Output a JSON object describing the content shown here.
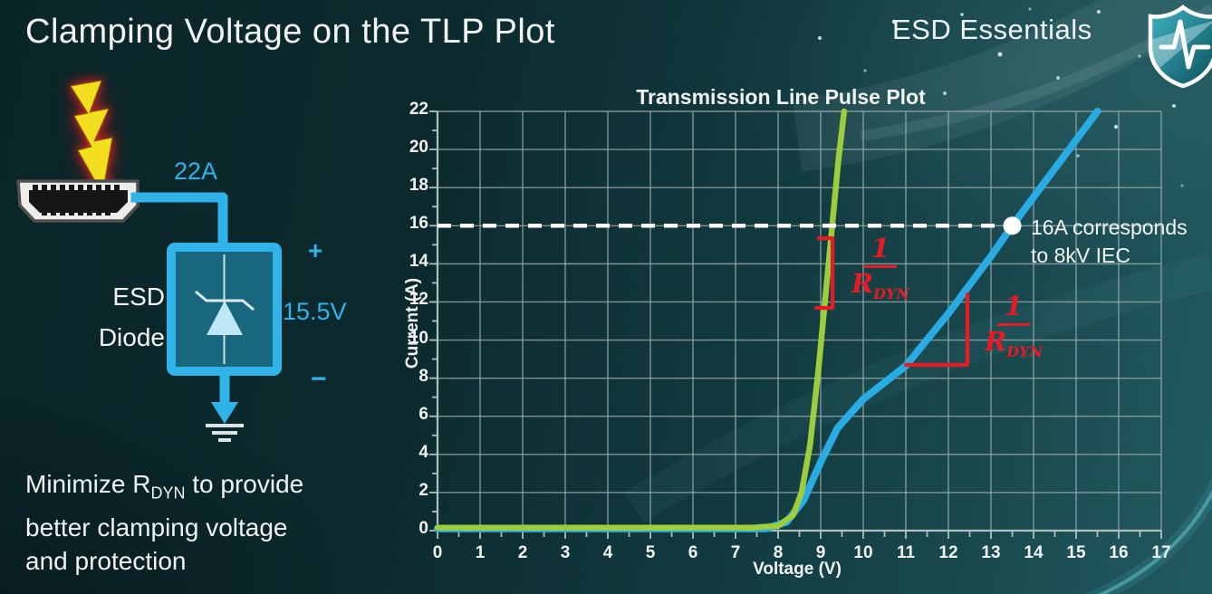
{
  "header": {
    "title": "Clamping Voltage on the TLP Plot",
    "brand": "ESD Essentials"
  },
  "icons": {
    "brand_icon": "shield-pulse-icon",
    "surge_icon": "lightning-bolt-icon",
    "connector_icon": "hdmi-connector-icon",
    "ground_icon": "earth-ground-icon"
  },
  "theme": {
    "colors": {
      "accent": "#2fb3e8",
      "green": "#9bcd3e",
      "blue": "#29ace3",
      "red": "#e61b24",
      "grid": "#9aacac",
      "text": "#f2f4f4"
    }
  },
  "circuit": {
    "surge_current": "22A",
    "component_line1": "ESD",
    "component_line2": "Diode",
    "clamp_voltage": "15.5V",
    "plus": "+",
    "minus": "−"
  },
  "note": {
    "prefix": "Minimize R",
    "subscript": "DYN",
    "suffix": " to provide",
    "line2": "better clamping voltage",
    "line3": "and protection"
  },
  "chart_data": {
    "type": "line",
    "title": "Transmission Line Pulse Plot",
    "xlabel": "Voltage (V)",
    "ylabel": "Current (A)",
    "xlim": [
      0,
      17
    ],
    "ylim": [
      0,
      22
    ],
    "grid": true,
    "x_ticks": [
      0,
      1,
      2,
      3,
      4,
      5,
      6,
      7,
      8,
      9,
      10,
      11,
      12,
      13,
      14,
      15,
      16,
      17
    ],
    "y_ticks": [
      0,
      2,
      4,
      6,
      8,
      10,
      12,
      14,
      16,
      18,
      20,
      22
    ],
    "series": [
      {
        "name": "green_curve_low_rdyn",
        "color": "#9bcd3e",
        "stroke_width": 6.5,
        "points": [
          [
            0,
            0.15
          ],
          [
            7.4,
            0.15
          ],
          [
            8.0,
            0.25
          ],
          [
            8.35,
            0.8
          ],
          [
            8.55,
            2
          ],
          [
            8.75,
            4.5
          ],
          [
            8.95,
            8.5
          ],
          [
            9.1,
            12
          ],
          [
            9.27,
            16
          ],
          [
            9.42,
            19.5
          ],
          [
            9.55,
            22
          ]
        ]
      },
      {
        "name": "blue_curve_higher_rdyn",
        "color": "#29ace3",
        "stroke_width": 8,
        "points": [
          [
            0,
            0.1
          ],
          [
            7.7,
            0.1
          ],
          [
            8.2,
            0.45
          ],
          [
            8.6,
            1.6
          ],
          [
            9.0,
            3.6
          ],
          [
            9.4,
            5.4
          ],
          [
            10.0,
            6.9
          ],
          [
            11.0,
            8.65
          ],
          [
            12.0,
            11.4
          ],
          [
            13.0,
            14.4
          ],
          [
            13.5,
            16
          ],
          [
            14.2,
            18.1
          ],
          [
            15.0,
            20.5
          ],
          [
            15.5,
            22
          ]
        ]
      }
    ],
    "reference_line": {
      "y": 16,
      "style": "dashed",
      "color": "#ffffff"
    },
    "marker": {
      "x": 13.5,
      "y": 16,
      "label_line1": "16A corresponds",
      "label_line2": "to 8kV IEC"
    },
    "annotations": [
      {
        "id": "rdyn-slope-green",
        "numerator": "1",
        "denominator_base": "R",
        "denominator_sub": "DYN"
      },
      {
        "id": "rdyn-slope-blue",
        "numerator": "1",
        "denominator_base": "R",
        "denominator_sub": "DYN"
      }
    ]
  }
}
